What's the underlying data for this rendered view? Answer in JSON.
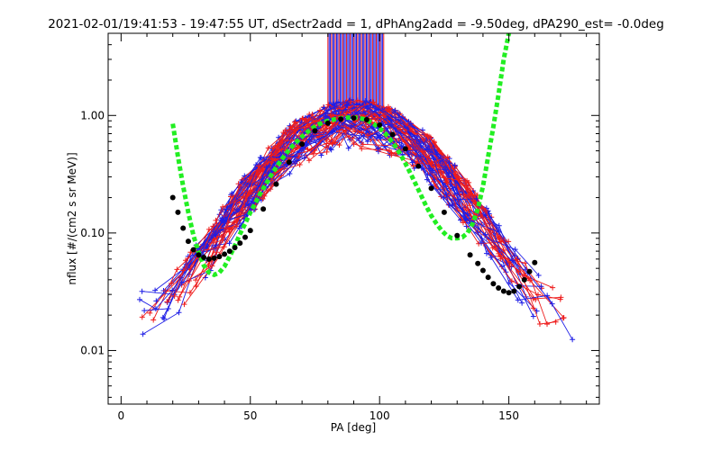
{
  "chart_data": {
    "type": "scatter",
    "title": "2021-02-01/19:41:53 - 19:47:55 UT, dSectr2add = 1, dPhAng2add = -9.50deg, dPA290_est=  -0.0deg",
    "xlabel": "PA [deg]",
    "ylabel": "nflux [#/(cm2 s sr MeV)]",
    "xlim": [
      -5,
      185
    ],
    "ylim": [
      0.0035,
      5
    ],
    "yscale": "log",
    "x_ticks": [
      0,
      50,
      100,
      150
    ],
    "x_tick_labels": [
      "0",
      "50",
      "100",
      "150"
    ],
    "y_ticks": [
      0.01,
      0.1,
      1.0
    ],
    "y_tick_labels": [
      "0.01",
      "0.10",
      "1.00"
    ],
    "grid": false,
    "colors": {
      "red": "#ee1c1c",
      "blue": "#1e1ee6",
      "green": "#22ee22",
      "black": "#000000"
    },
    "series": [
      {
        "style": "green-dashed-fit",
        "x": [
          20,
          22,
          24,
          26,
          28,
          30,
          32,
          34,
          36,
          38,
          40,
          42,
          44,
          46,
          48,
          50,
          52,
          54,
          56,
          58,
          60,
          62,
          64,
          66,
          68,
          70,
          72,
          74,
          76,
          78,
          80,
          82,
          84,
          86,
          88,
          90,
          92,
          94,
          96,
          98,
          100,
          102,
          104,
          106,
          108,
          110,
          112,
          114,
          116,
          118,
          120,
          122,
          124,
          126,
          128,
          130,
          132,
          134,
          136,
          138,
          140,
          142,
          144,
          146,
          148,
          150
        ],
        "y": [
          0.85,
          0.45,
          0.25,
          0.15,
          0.095,
          0.068,
          0.053,
          0.046,
          0.044,
          0.046,
          0.052,
          0.063,
          0.078,
          0.098,
          0.12,
          0.15,
          0.18,
          0.22,
          0.26,
          0.31,
          0.36,
          0.42,
          0.48,
          0.54,
          0.6,
          0.66,
          0.72,
          0.78,
          0.83,
          0.87,
          0.9,
          0.92,
          0.94,
          0.95,
          0.96,
          0.96,
          0.95,
          0.93,
          0.89,
          0.84,
          0.78,
          0.71,
          0.63,
          0.55,
          0.47,
          0.39,
          0.32,
          0.26,
          0.21,
          0.17,
          0.14,
          0.12,
          0.105,
          0.095,
          0.09,
          0.09,
          0.092,
          0.1,
          0.12,
          0.16,
          0.25,
          0.45,
          0.8,
          1.5,
          3.0,
          5.0
        ]
      },
      {
        "style": "black-dotted-fit",
        "x": [
          20,
          22,
          24,
          26,
          28,
          30,
          32,
          34,
          36,
          38,
          40,
          42,
          44,
          46,
          48,
          50,
          55,
          60,
          65,
          70,
          75,
          80,
          85,
          90,
          95,
          100,
          105,
          110,
          115,
          120,
          125,
          130,
          135,
          138,
          140,
          142,
          144,
          146,
          148,
          150,
          152,
          154,
          156,
          158,
          160
        ],
        "y": [
          0.2,
          0.15,
          0.11,
          0.085,
          0.072,
          0.065,
          0.062,
          0.06,
          0.061,
          0.063,
          0.066,
          0.07,
          0.075,
          0.082,
          0.092,
          0.105,
          0.16,
          0.26,
          0.4,
          0.57,
          0.74,
          0.86,
          0.93,
          0.95,
          0.92,
          0.83,
          0.69,
          0.52,
          0.37,
          0.24,
          0.15,
          0.095,
          0.065,
          0.055,
          0.048,
          0.042,
          0.037,
          0.034,
          0.032,
          0.031,
          0.032,
          0.035,
          0.04,
          0.047,
          0.056
        ]
      }
    ]
  }
}
